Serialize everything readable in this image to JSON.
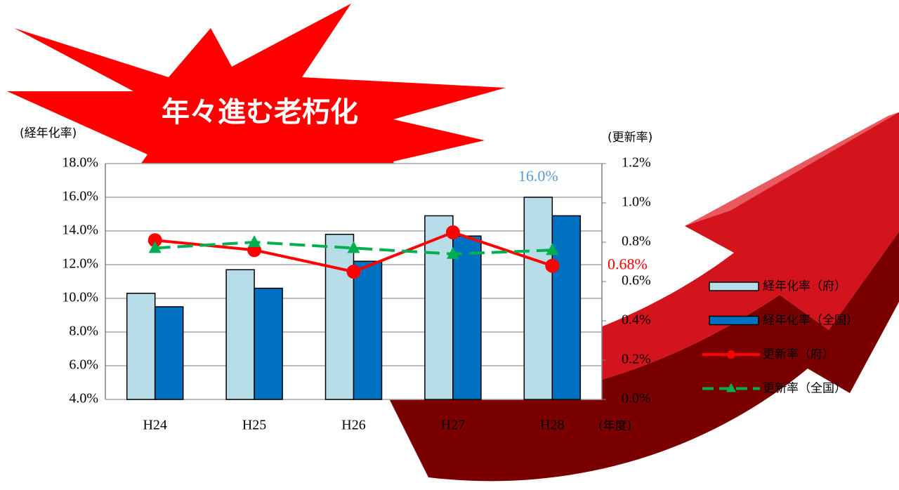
{
  "headline": "年々進む老朽化",
  "chart_data": {
    "type": "bar",
    "y_label": "(経年化率)",
    "y2_label": "(更新率)",
    "x_label": "(年度)",
    "categories": [
      "H24",
      "H25",
      "H26",
      "H27",
      "H28"
    ],
    "series": [
      {
        "name": "経年化率（府）",
        "type": "bar",
        "color": "#b7dde8",
        "values": [
          10.3,
          11.7,
          13.8,
          14.9,
          16.0
        ],
        "value_labels": [
          null,
          null,
          null,
          null,
          "16.0%"
        ],
        "label_color": "#5b9bd5"
      },
      {
        "name": "経年化率（全国）",
        "type": "bar",
        "color": "#0070c0",
        "values": [
          9.5,
          10.6,
          12.2,
          13.7,
          14.9
        ]
      },
      {
        "name": "更新率（府）",
        "type": "line",
        "axis": "y2",
        "color": "#ff0000",
        "marker": "circle",
        "values": [
          0.81,
          0.76,
          0.65,
          0.85,
          0.68
        ],
        "value_labels": [
          null,
          null,
          null,
          null,
          "0.68%"
        ],
        "label_color": "#ff0000"
      },
      {
        "name": "更新率（全国）",
        "type": "line",
        "axis": "y2",
        "color": "#00b050",
        "marker": "triangle",
        "dashed": true,
        "values": [
          0.77,
          0.8,
          0.77,
          0.74,
          0.76
        ]
      }
    ],
    "ylim": [
      4,
      18
    ],
    "yticks": [
      {
        "value": 4,
        "label": "4.0%"
      },
      {
        "value": 6,
        "label": "6.0%"
      },
      {
        "value": 8,
        "label": "8.0%"
      },
      {
        "value": 10,
        "label": "10.0%"
      },
      {
        "value": 12,
        "label": "12.0%"
      },
      {
        "value": 14,
        "label": "14.0%"
      },
      {
        "value": 16,
        "label": "16.0%"
      },
      {
        "value": 18,
        "label": "18.0%"
      }
    ],
    "y2lim": [
      0,
      1.2
    ],
    "y2ticks": [
      {
        "value": 0,
        "label": "0.0%"
      },
      {
        "value": 0.2,
        "label": "0.2%"
      },
      {
        "value": 0.4,
        "label": "0.4%"
      },
      {
        "value": 0.6,
        "label": "0.6%"
      },
      {
        "value": 0.8,
        "label": "0.8%"
      },
      {
        "value": 1.0,
        "label": "1.0%"
      },
      {
        "value": 1.2,
        "label": "1.2%"
      }
    ],
    "grid": true
  }
}
